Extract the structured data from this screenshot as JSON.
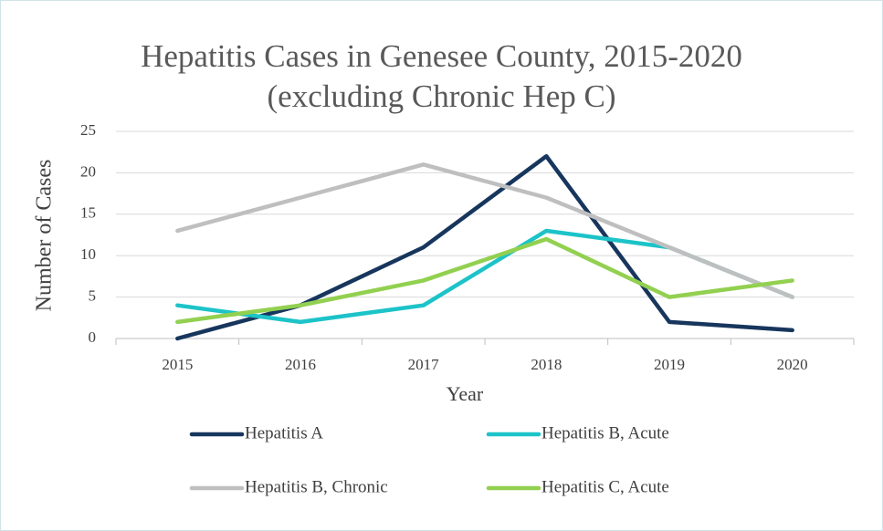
{
  "chart_data": {
    "type": "line",
    "title": "Hepatitis Cases in Genesee County, 2015-2020 (excluding Chronic Hep C)",
    "xlabel": "Year",
    "ylabel": "Number of Cases",
    "categories": [
      "2015",
      "2016",
      "2017",
      "2018",
      "2019",
      "2020"
    ],
    "series": [
      {
        "name": "Hepatitis A",
        "color": "#17365d",
        "values": [
          0,
          4,
          11,
          22,
          2,
          1
        ]
      },
      {
        "name": "Hepatitis B, Acute",
        "color": "#1cc3c8",
        "values": [
          4,
          2,
          4,
          13,
          11,
          5
        ]
      },
      {
        "name": "Hepatitis B, Chronic",
        "color": "#bfbfbf",
        "values": [
          13,
          17,
          21,
          17,
          11,
          5
        ]
      },
      {
        "name": "Hepatitis C, Acute",
        "color": "#92d050",
        "values": [
          2,
          4,
          7,
          12,
          5,
          7
        ]
      }
    ],
    "ylim": [
      0,
      25
    ],
    "yticks": [
      0,
      5,
      10,
      15,
      20,
      25
    ],
    "grid": true,
    "legend": "bottom"
  }
}
